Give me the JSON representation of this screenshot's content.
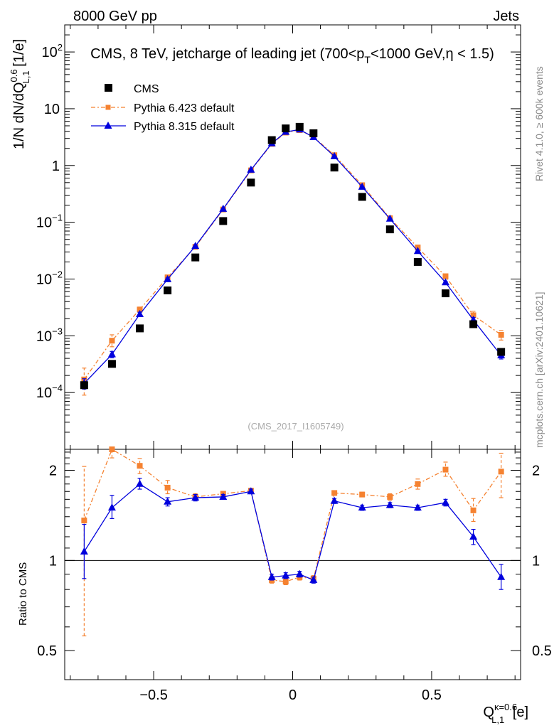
{
  "header": {
    "left": "8000 GeV pp",
    "right": "Jets"
  },
  "title": {
    "lead": "CMS, 8 TeV, jetcharge of leading jet (700<p",
    "sub": "T",
    "mid": "<1000 GeV,",
    "eta": "η",
    "tail": " < 1.5)"
  },
  "side_labels": {
    "rivet": "Rivet 4.1.0, ≥ 600k events",
    "mcplots": "mcplots.cern.ch [arXiv:2401.10621]"
  },
  "watermark": "(CMS_2017_I1605749)",
  "axes": {
    "ylabel_main": {
      "pre": "1/N dN/dQ",
      "sup": "0.6",
      "sub": "L,1",
      "post": " [1/e]"
    },
    "ylabel_ratio": "Ratio to CMS",
    "xlabel": {
      "pre": "Q",
      "sup": "κ=0.6",
      "sub": "L,1",
      "post": " [e]"
    },
    "xticks": [
      {
        "v": -0.5,
        "label": "−0.5"
      },
      {
        "v": 0,
        "label": "0"
      },
      {
        "v": 0.5,
        "label": "0.5"
      }
    ],
    "yticks_main": [
      {
        "v": 100,
        "base": "10",
        "exp": "2"
      },
      {
        "v": 10,
        "base": "10",
        "exp": ""
      },
      {
        "v": 1,
        "base": "1",
        "exp": ""
      },
      {
        "v": 0.1,
        "base": "10",
        "exp": "−1"
      },
      {
        "v": 0.01,
        "base": "10",
        "exp": "−2"
      },
      {
        "v": 0.001,
        "base": "10",
        "exp": "−3"
      },
      {
        "v": 0.0001,
        "base": "10",
        "exp": "−4"
      }
    ],
    "yticks_ratio": [
      {
        "v": 2,
        "label": "2"
      },
      {
        "v": 1,
        "label": "1"
      },
      {
        "v": 0.5,
        "label": "0.5"
      }
    ]
  },
  "legend": {
    "cms": "CMS",
    "py6": "Pythia 6.423 default",
    "py8": "Pythia 8.315 default"
  },
  "colors": {
    "cms": "#000000",
    "py6": "#f58231",
    "py8": "#0000dd",
    "axis": "#000000"
  },
  "chart_data": [
    {
      "type": "scatter",
      "panel": "main",
      "xlim": [
        -0.82,
        0.82
      ],
      "ylim": [
        1e-05,
        300
      ],
      "yscale": "log",
      "x": [
        -0.75,
        -0.65,
        -0.55,
        -0.45,
        -0.35,
        -0.25,
        -0.15,
        -0.075,
        -0.025,
        0.025,
        0.075,
        0.15,
        0.25,
        0.35,
        0.45,
        0.55,
        0.65,
        0.75
      ],
      "series": [
        {
          "name": "CMS",
          "values": [
            0.000135,
            0.00032,
            0.00135,
            0.0063,
            0.024,
            0.105,
            0.5,
            2.8,
            4.5,
            4.8,
            3.7,
            0.92,
            0.28,
            0.075,
            0.02,
            0.0056,
            0.0016,
            0.00052
          ]
        },
        {
          "name": "Pythia 6.423 default",
          "values": [
            0.00017,
            0.00082,
            0.0029,
            0.0107,
            0.037,
            0.168,
            0.82,
            2.4,
            3.8,
            4.2,
            3.2,
            1.52,
            0.45,
            0.118,
            0.036,
            0.0112,
            0.0023,
            0.00104
          ],
          "err_lo": [
            8e-05,
            0.00018,
            0.0003,
            0.001,
            0.002,
            0.006,
            0.02,
            0.05,
            0.06,
            0.06,
            0.05,
            0.03,
            0.01,
            0.004,
            0.002,
            0.0008,
            0.0004,
            0.0002
          ],
          "err_hi": [
            0.0001,
            0.00022,
            0.0003,
            0.001,
            0.002,
            0.006,
            0.02,
            0.05,
            0.06,
            0.06,
            0.05,
            0.03,
            0.01,
            0.004,
            0.002,
            0.0008,
            0.0004,
            0.0002
          ]
        },
        {
          "name": "Pythia 8.315 default",
          "values": [
            0.000145,
            0.00047,
            0.0024,
            0.0099,
            0.038,
            0.172,
            0.84,
            2.45,
            3.9,
            4.3,
            3.15,
            1.45,
            0.42,
            0.115,
            0.031,
            0.0087,
            0.0019,
            0.00045
          ],
          "err_lo": [
            3e-05,
            6e-05,
            0.0002,
            0.0005,
            0.001,
            0.004,
            0.02,
            0.05,
            0.06,
            0.06,
            0.05,
            0.03,
            0.01,
            0.003,
            0.001,
            0.0004,
            0.0002,
            6e-05
          ],
          "err_hi": [
            3e-05,
            6e-05,
            0.0002,
            0.0005,
            0.001,
            0.004,
            0.02,
            0.05,
            0.06,
            0.06,
            0.05,
            0.03,
            0.01,
            0.003,
            0.001,
            0.0004,
            0.0002,
            6e-05
          ]
        }
      ]
    },
    {
      "type": "line",
      "panel": "ratio",
      "xlim": [
        -0.82,
        0.82
      ],
      "ylim": [
        0.4,
        2.35
      ],
      "yscale": "log",
      "reference_line": 1,
      "x": [
        -0.75,
        -0.65,
        -0.55,
        -0.45,
        -0.35,
        -0.25,
        -0.15,
        -0.075,
        -0.025,
        0.025,
        0.075,
        0.15,
        0.25,
        0.35,
        0.45,
        0.55,
        0.65,
        0.75
      ],
      "series": [
        {
          "name": "Pythia 6.423 default",
          "values": [
            1.36,
            2.5,
            2.07,
            1.75,
            1.63,
            1.67,
            1.71,
            0.86,
            0.85,
            0.88,
            0.87,
            1.68,
            1.66,
            1.63,
            1.8,
            2.01,
            1.47,
            1.98
          ],
          "err_lo": [
            0.8,
            0.3,
            0.12,
            0.08,
            0.04,
            0.03,
            0.03,
            0.02,
            0.02,
            0.02,
            0.02,
            0.03,
            0.03,
            0.04,
            0.07,
            0.1,
            0.12,
            0.36
          ],
          "err_hi": [
            0.7,
            0.3,
            0.12,
            0.1,
            0.04,
            0.03,
            0.03,
            0.02,
            0.02,
            0.02,
            0.02,
            0.03,
            0.03,
            0.04,
            0.07,
            0.12,
            0.14,
            0.3
          ]
        },
        {
          "name": "Pythia 8.315 default",
          "values": [
            1.07,
            1.5,
            1.8,
            1.57,
            1.62,
            1.63,
            1.7,
            0.88,
            0.89,
            0.9,
            0.86,
            1.58,
            1.5,
            1.53,
            1.5,
            1.56,
            1.2,
            0.88
          ],
          "err_lo": [
            0.2,
            0.12,
            0.07,
            0.05,
            0.04,
            0.03,
            0.03,
            0.02,
            0.02,
            0.02,
            0.02,
            0.03,
            0.03,
            0.03,
            0.03,
            0.04,
            0.07,
            0.08
          ],
          "err_hi": [
            0.25,
            0.15,
            0.08,
            0.05,
            0.04,
            0.03,
            0.03,
            0.02,
            0.02,
            0.02,
            0.02,
            0.03,
            0.03,
            0.03,
            0.03,
            0.04,
            0.07,
            0.09
          ]
        }
      ]
    }
  ]
}
